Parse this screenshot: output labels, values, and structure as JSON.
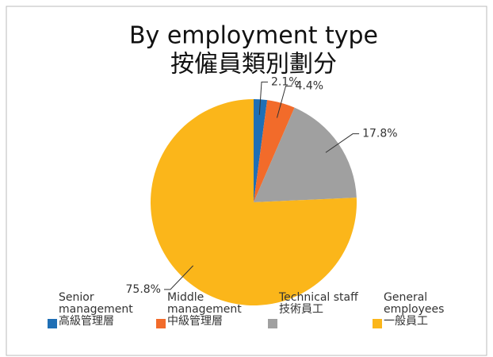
{
  "chart_data": {
    "type": "pie",
    "title": "By employment type",
    "subtitle": "按僱員類別劃分",
    "categories": [
      "Senior management\n高級管理層",
      "Middle management\n中級管理層",
      "Technical staff\n技術員工",
      "General employees\n一般員工"
    ],
    "values": [
      2.1,
      4.4,
      17.8,
      75.8
    ],
    "value_labels": [
      "2.1%",
      "4.4%",
      "17.8%",
      "75.8%"
    ],
    "colors": [
      "#1f6fb5",
      "#f26b2a",
      "#a0a0a0",
      "#fbb61a"
    ],
    "legend": "bottom"
  }
}
